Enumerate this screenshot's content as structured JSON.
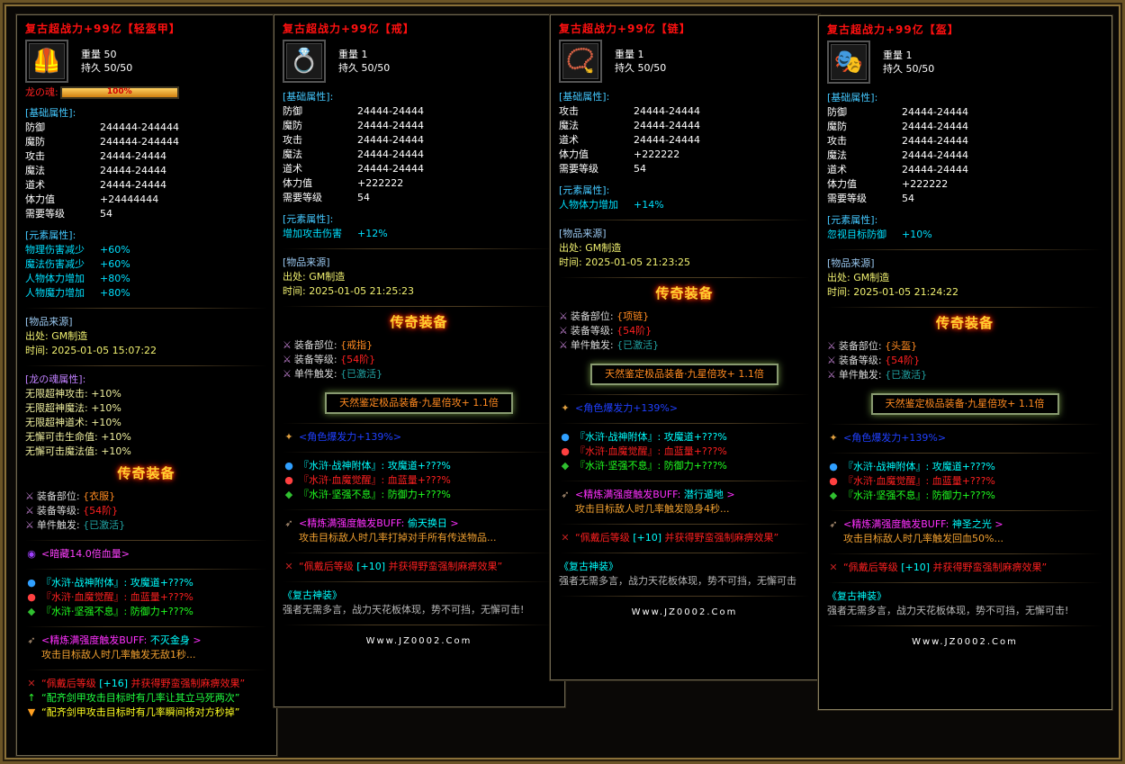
{
  "common": {
    "weight_label": "重量",
    "durability_label": "持久",
    "base_header": "[基础属性]:",
    "element_header": "[元素属性]:",
    "source_header": "[物品来源]",
    "origin_label": "出处:",
    "time_label": "时间:",
    "legend_badge": "传奇装备",
    "equip_labels": [
      "装备部位:",
      "装备等级:",
      "单件触发:"
    ],
    "water": [
      {
        "text": "『水浒·战神附体』: 攻魔道+???%",
        "color": "cy",
        "icon": "blue-orb-icon"
      },
      {
        "text": "『水浒·血魔觉醒』: 血蓝量+???%",
        "color": "rd",
        "icon": "red-orb-icon"
      },
      {
        "text": "『水浒·坚强不息』: 防御力+???%",
        "color": "gr",
        "icon": "green-gem-icon"
      }
    ],
    "refine_prefix": "<精炼满强度触发BUFF:",
    "refine_suffix": ">",
    "wear_pre": "“佩戴后等级",
    "wear_post": "并获得野蛮强制麻痹效果”",
    "star_box": "天然鉴定极品装备·九星倍攻+ 1.1倍",
    "explosive": "<角色爆发力+139%>",
    "set_title": "《复古神装》",
    "site": "Www.JZ0002.Com"
  },
  "panels": [
    {
      "title": "复古超战力+99亿【轻盔甲】",
      "icon": "armor-icon",
      "weight": "50",
      "durability": "50/50",
      "soul": {
        "label": "龙の魂:",
        "percent": 100,
        "text": "100%"
      },
      "base": [
        [
          "防御",
          "244444-244444"
        ],
        [
          "魔防",
          "244444-244444"
        ],
        [
          "攻击",
          "24444-24444"
        ],
        [
          "魔法",
          "24444-24444"
        ],
        [
          "道术",
          "24444-24444"
        ],
        [
          "体力值",
          "+24444444"
        ],
        [
          "需要等级",
          "54"
        ]
      ],
      "element": [
        [
          "物理伤害减少",
          "+60%"
        ],
        [
          "魔法伤害减少",
          "+60%"
        ],
        [
          "人物体力增加",
          "+80%"
        ],
        [
          "人物魔力增加",
          "+80%"
        ]
      ],
      "origin": "GM制造",
      "time": "2025-01-05 15:07:22",
      "soul_attrs": {
        "header": "[龙の魂属性]:",
        "rows": [
          "无限超神攻击: +10%",
          "无限超神魔法: +10%",
          "无限超神道术: +10%",
          "无懈可击生命值: +10%",
          "无懈可击魔法值: +10%"
        ]
      },
      "equip": [
        "{衣服}",
        "{54阶}",
        "{已激活}"
      ],
      "hidden": "<暗藏14.0倍血量>",
      "refine_name": "不灭金身",
      "refine_desc": "攻击目标敌人时几率触发无敌1秒...",
      "wear_level": "[+16]",
      "extra": [
        {
          "text": "“配齐剑甲攻击目标时有几率让其立马死两次”",
          "color": "gr",
          "icon": "green-arrow-icon"
        },
        {
          "text": "“配齐剑甲攻击目标时有几率瞬间将对方秒掉”",
          "color": "yellow",
          "icon": "triangle-icon"
        }
      ]
    },
    {
      "title": "复古超战力+99亿【戒】",
      "icon": "ring-icon",
      "weight": "1",
      "durability": "50/50",
      "base": [
        [
          "防御",
          "24444-24444"
        ],
        [
          "魔防",
          "24444-24444"
        ],
        [
          "攻击",
          "24444-24444"
        ],
        [
          "魔法",
          "24444-24444"
        ],
        [
          "道术",
          "24444-24444"
        ],
        [
          "体力值",
          "+222222"
        ],
        [
          "需要等级",
          "54"
        ]
      ],
      "element": [
        [
          "增加攻击伤害",
          "+12%"
        ]
      ],
      "origin": "GM制造",
      "time": "2025-01-05 21:25:23",
      "equip": [
        "{戒指}",
        "{54阶}",
        "{已激活}"
      ],
      "refine_name": "偷天换日",
      "refine_desc": "攻击目标敌人时几率打掉对手所有传送物品...",
      "wear_level": "[+10]",
      "set_desc": "强者无需多言，战力天花板体现，势不可挡，无懈可击!"
    },
    {
      "title": "复古超战力+99亿【链】",
      "icon": "necklace-icon",
      "weight": "1",
      "durability": "50/50",
      "base": [
        [
          "攻击",
          "24444-24444"
        ],
        [
          "魔法",
          "24444-24444"
        ],
        [
          "道术",
          "24444-24444"
        ],
        [
          "体力值",
          "+222222"
        ],
        [
          "需要等级",
          "54"
        ]
      ],
      "element": [
        [
          "人物体力增加",
          "+14%"
        ]
      ],
      "origin": "GM制造",
      "time": "2025-01-05 21:23:25",
      "equip": [
        "{项链}",
        "{54阶}",
        "{已激活}"
      ],
      "refine_name": "潜行遁地",
      "refine_desc": "攻击目标敌人时几率触发隐身4秒...",
      "wear_level": "[+10]",
      "set_desc": "强者无需多言，战力天花板体现，势不可挡，无懈可击"
    },
    {
      "title": "复古超战力+99亿【盔】",
      "icon": "helmet-icon",
      "weight": "1",
      "durability": "50/50",
      "base": [
        [
          "防御",
          "24444-24444"
        ],
        [
          "魔防",
          "24444-24444"
        ],
        [
          "攻击",
          "24444-24444"
        ],
        [
          "魔法",
          "24444-24444"
        ],
        [
          "道术",
          "24444-24444"
        ],
        [
          "体力值",
          "+222222"
        ],
        [
          "需要等级",
          "54"
        ]
      ],
      "element": [
        [
          "忽视目标防御",
          "+10%"
        ]
      ],
      "origin": "GM制造",
      "time": "2025-01-05 21:24:22",
      "equip": [
        "{头盔}",
        "{54阶}",
        "{已激活}"
      ],
      "refine_name": "神圣之光",
      "refine_desc": "攻击目标敌人时几率触发回血50%...",
      "wear_level": "[+10]",
      "set_desc": "强者无需多言，战力天花板体现，势不可挡，无懈可击!"
    }
  ],
  "colors": {
    "title": "#ff1010",
    "frame": "#6b5426",
    "equip_values": [
      "#ff8a20",
      "#ff2020",
      "#20a0a0"
    ]
  }
}
